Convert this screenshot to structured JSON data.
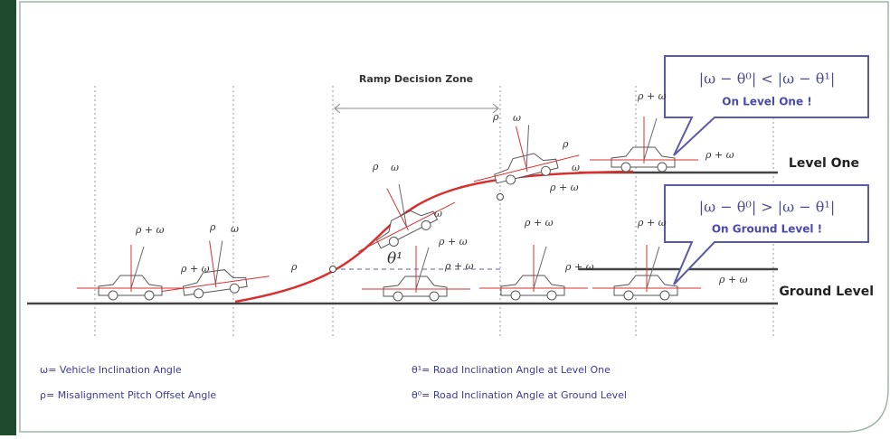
{
  "zone_label": "Ramp Decision Zone",
  "levels": [
    "Level One",
    "Ground Level"
  ],
  "callouts": [
    {
      "formula": "|ω − θ⁰| < |ω − θ¹|",
      "result": "On Level One !"
    },
    {
      "formula": "|ω − θ⁰| > |ω − θ¹|",
      "result": "On Ground Level !"
    }
  ],
  "angle_labels": [
    "ρ + ω",
    "ρ",
    "ω",
    "ρ + ω",
    "ρ",
    "ρ",
    "ω",
    "ω",
    "ρ + ω",
    "θ¹",
    "ρ + ω",
    "ρ",
    "ω",
    "ρ",
    "ω",
    "ρ + ω",
    "ρ + ω",
    "ρ + ω",
    "ρ + ω",
    "ρ + ω",
    "ρ + ω",
    "ρ + ω"
  ],
  "legend": [
    "ω= Vehicle Inclination Angle",
    "ρ= Misalignment Pitch Offset Angle",
    "θ¹= Road Inclination Angle at Level One",
    "θ⁰= Road Inclination Angle at Ground Level"
  ]
}
